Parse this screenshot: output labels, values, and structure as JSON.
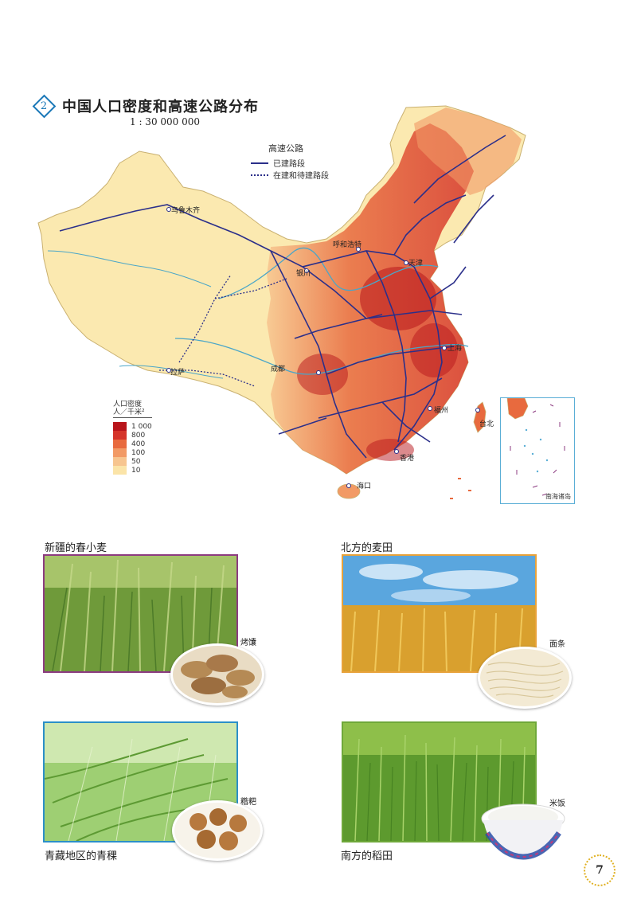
{
  "map": {
    "number": "2",
    "title": "中国人口密度和高速公路分布",
    "scale": "1 : 30 000 000",
    "highway_legend": {
      "title": "高速公路",
      "built": "已建路段",
      "planned": "在建和待建路段"
    },
    "density_legend": {
      "title": "人口密度",
      "unit": "人／千米²",
      "classes": [
        {
          "label": "1 000",
          "color": "#b8151b"
        },
        {
          "label": "800",
          "color": "#d5342a"
        },
        {
          "label": "400",
          "color": "#e86a3e"
        },
        {
          "label": "100",
          "color": "#f29a65"
        },
        {
          "label": "50",
          "color": "#f7c58f"
        },
        {
          "label": "10",
          "color": "#fbe4a8"
        }
      ]
    },
    "cities": {
      "wulumuqi": "乌鲁木齐",
      "huhehaote": "呼和浩特",
      "yinchuan": "银川",
      "lasa": "拉萨",
      "chengdu": "成都",
      "shanghai": "上海",
      "fuzhou": "福州",
      "taibei": "台北",
      "xianggang": "香港",
      "haikou": "海口",
      "tianjin": "天津"
    },
    "inset_label": "南海诸岛"
  },
  "photos": [
    {
      "caption": "新疆的春小麦",
      "food": "烤馕"
    },
    {
      "caption": "北方的麦田",
      "food": "面条"
    },
    {
      "caption": "青藏地区的青稞",
      "food": "糌粑"
    },
    {
      "caption": "南方的稻田",
      "food": "米饭"
    }
  ],
  "page_number": "7"
}
